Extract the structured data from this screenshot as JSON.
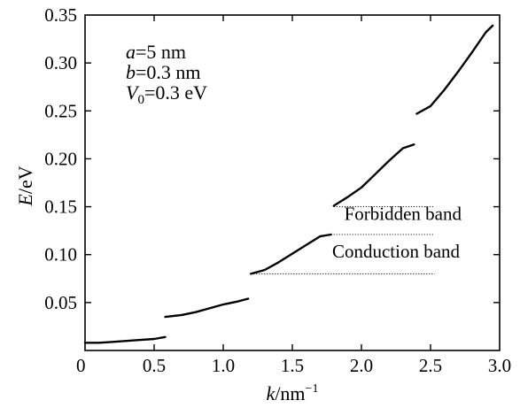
{
  "chart_data": {
    "type": "line",
    "title": "",
    "xlabel": {
      "var": "k",
      "unit": "/nm",
      "exp": "−1"
    },
    "ylabel": {
      "var": "E",
      "unit": "/eV"
    },
    "xlim": [
      0,
      3.0
    ],
    "ylim": [
      0,
      0.35
    ],
    "x_ticks": [
      {
        "value": 0,
        "label": "0"
      },
      {
        "value": 0.5,
        "label": "0.5"
      },
      {
        "value": 1.0,
        "label": "1.0"
      },
      {
        "value": 1.5,
        "label": "1.5"
      },
      {
        "value": 2.0,
        "label": "2.0"
      },
      {
        "value": 2.5,
        "label": "2.5"
      },
      {
        "value": 3.0,
        "label": "3.0"
      }
    ],
    "y_ticks": [
      {
        "value": 0.05,
        "label": "0.05"
      },
      {
        "value": 0.1,
        "label": "0.10"
      },
      {
        "value": 0.15,
        "label": "0.15"
      },
      {
        "value": 0.2,
        "label": "0.20"
      },
      {
        "value": 0.25,
        "label": "0.25"
      },
      {
        "value": 0.3,
        "label": "0.30"
      },
      {
        "value": 0.35,
        "label": "0.35"
      }
    ],
    "grid": false,
    "parameters": [
      {
        "var": "a",
        "value": "5 nm"
      },
      {
        "var": "b",
        "value": "0.3 nm"
      },
      {
        "var": "V",
        "sub": "0",
        "value": "0.3 eV"
      }
    ],
    "segments": [
      {
        "points": [
          [
            0,
            0.008
          ],
          [
            0.1,
            0.008
          ],
          [
            0.2,
            0.009
          ],
          [
            0.3,
            0.01
          ],
          [
            0.4,
            0.011
          ],
          [
            0.5,
            0.012
          ],
          [
            0.58,
            0.014
          ]
        ]
      },
      {
        "points": [
          [
            0.58,
            0.035
          ],
          [
            0.7,
            0.037
          ],
          [
            0.8,
            0.04
          ],
          [
            0.9,
            0.044
          ],
          [
            1.0,
            0.048
          ],
          [
            1.1,
            0.051
          ],
          [
            1.18,
            0.054
          ]
        ]
      },
      {
        "points": [
          [
            1.2,
            0.08
          ],
          [
            1.3,
            0.084
          ],
          [
            1.4,
            0.092
          ],
          [
            1.5,
            0.101
          ],
          [
            1.6,
            0.11
          ],
          [
            1.7,
            0.119
          ],
          [
            1.78,
            0.121
          ]
        ]
      },
      {
        "points": [
          [
            1.8,
            0.151
          ],
          [
            1.9,
            0.16
          ],
          [
            2.0,
            0.17
          ],
          [
            2.1,
            0.184
          ],
          [
            2.2,
            0.198
          ],
          [
            2.3,
            0.211
          ],
          [
            2.38,
            0.215
          ]
        ]
      },
      {
        "points": [
          [
            2.4,
            0.247
          ],
          [
            2.5,
            0.255
          ],
          [
            2.6,
            0.272
          ],
          [
            2.7,
            0.291
          ],
          [
            2.8,
            0.311
          ],
          [
            2.9,
            0.332
          ],
          [
            2.95,
            0.339
          ]
        ]
      }
    ],
    "reference_lines": [
      {
        "y": 0.15,
        "x1": 1.8,
        "x2": 2.53
      },
      {
        "y": 0.121,
        "x1": 1.78,
        "x2": 2.53
      },
      {
        "y": 0.08,
        "x1": 1.2,
        "x2": 2.53
      }
    ],
    "annotations": [
      {
        "text": "Forbidden band",
        "x": 2.3,
        "y": 0.136
      },
      {
        "text": "Conduction band",
        "x": 2.25,
        "y": 0.097
      }
    ]
  }
}
